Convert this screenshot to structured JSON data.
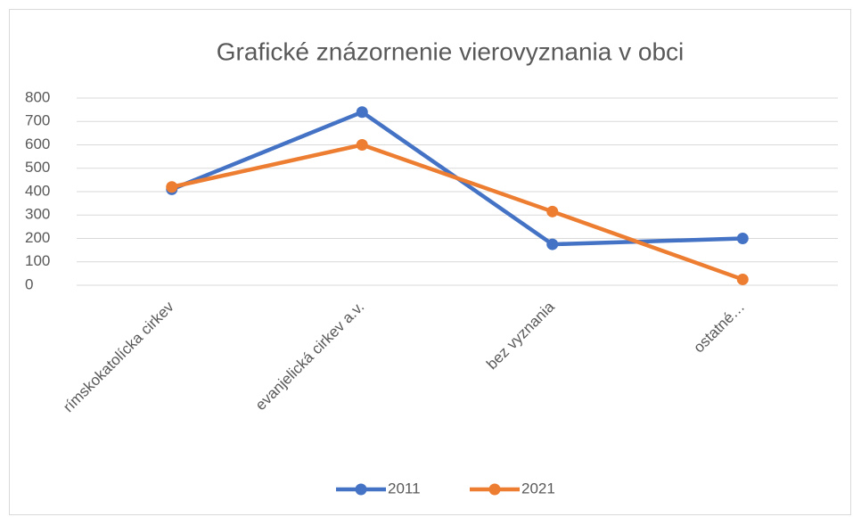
{
  "chart_data": {
    "type": "line",
    "title": "Grafické znázornenie vierovyznania v obci",
    "categories": [
      "rímskokatolícka cirkev",
      "evanjelická cirkev a.v.",
      "bez vyznania",
      "ostatné…"
    ],
    "series": [
      {
        "name": "2011",
        "color": "#4472c4",
        "values": [
          410,
          740,
          175,
          200
        ]
      },
      {
        "name": "2021",
        "color": "#ed7d31",
        "values": [
          420,
          600,
          315,
          25
        ]
      }
    ],
    "ylim": [
      0,
      800
    ],
    "yticks": [
      0,
      100,
      200,
      300,
      400,
      500,
      600,
      700,
      800
    ],
    "grid": true,
    "legend": "bottom"
  }
}
